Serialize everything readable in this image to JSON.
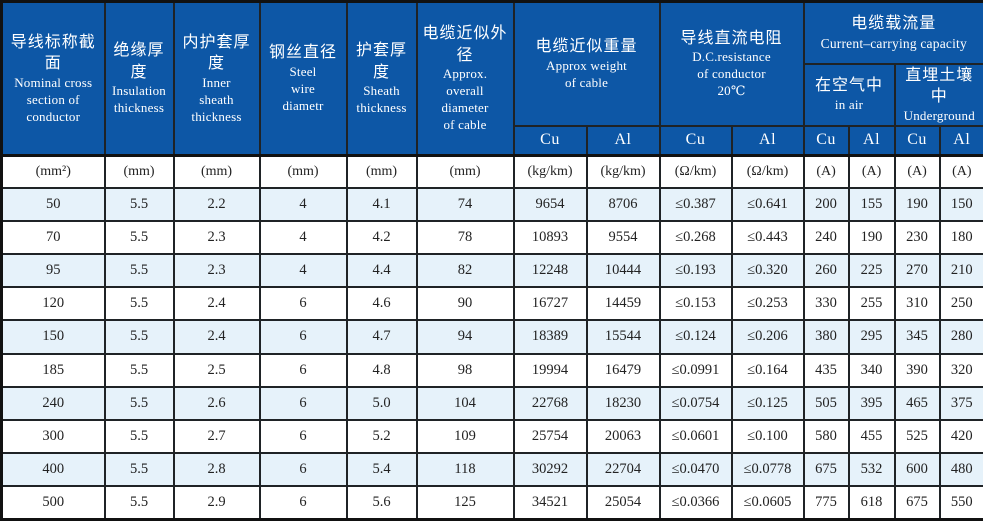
{
  "table_title": "cable-specification-table",
  "header": {
    "simple": [
      {
        "zh": "导线标称截面",
        "en": "Nominal  cross\nsection of\nconductor"
      },
      {
        "zh": "绝缘厚度",
        "en": "Insulation\nthickness"
      },
      {
        "zh": "内护套厚度",
        "en": "Inner\nsheath\nthickness"
      },
      {
        "zh": "钢丝直径",
        "en": "Steel\nwire\ndiametr"
      },
      {
        "zh": "护套厚度",
        "en": "Sheath\nthickness"
      },
      {
        "zh": "电缆近似外径",
        "en": "Approx.\noverall\ndiameter\nof cable"
      }
    ],
    "groups": {
      "weight": {
        "zh": "电缆近似重量",
        "en": "Approx weight\nof cable"
      },
      "resistance": {
        "zh": "导线直流电阻",
        "en": "D.C.resistance\nof conductor\n20℃"
      },
      "capacity": {
        "zh": "电缆载流量",
        "en": "Current–carrying capacity"
      }
    },
    "subgroups": {
      "in_air": {
        "zh": "在空气中",
        "en": "in air"
      },
      "underground": {
        "zh": "直埋土壤中",
        "en": "Underground"
      }
    },
    "materials": [
      "Cu",
      "Al",
      "Cu",
      "Al",
      "Cu",
      "Al",
      "Cu",
      "Al"
    ]
  },
  "units": [
    "(mm²)",
    "(mm)",
    "(mm)",
    "(mm)",
    "(mm)",
    "(mm)",
    "(kg/km)",
    "(kg/km)",
    "(Ω/km)",
    "(Ω/km)",
    "(A)",
    "(A)",
    "(A)",
    "(A)"
  ],
  "rows": [
    [
      "50",
      "5.5",
      "2.2",
      "4",
      "4.1",
      "74",
      "9654",
      "8706",
      "≤0.387",
      "≤0.641",
      "200",
      "155",
      "190",
      "150"
    ],
    [
      "70",
      "5.5",
      "2.3",
      "4",
      "4.2",
      "78",
      "10893",
      "9554",
      "≤0.268",
      "≤0.443",
      "240",
      "190",
      "230",
      "180"
    ],
    [
      "95",
      "5.5",
      "2.3",
      "4",
      "4.4",
      "82",
      "12248",
      "10444",
      "≤0.193",
      "≤0.320",
      "260",
      "225",
      "270",
      "210"
    ],
    [
      "120",
      "5.5",
      "2.4",
      "6",
      "4.6",
      "90",
      "16727",
      "14459",
      "≤0.153",
      "≤0.253",
      "330",
      "255",
      "310",
      "250"
    ],
    [
      "150",
      "5.5",
      "2.4",
      "6",
      "4.7",
      "94",
      "18389",
      "15544",
      "≤0.124",
      "≤0.206",
      "380",
      "295",
      "345",
      "280"
    ],
    [
      "185",
      "5.5",
      "2.5",
      "6",
      "4.8",
      "98",
      "19994",
      "16479",
      "≤0.0991",
      "≤0.164",
      "435",
      "340",
      "390",
      "320"
    ],
    [
      "240",
      "5.5",
      "2.6",
      "6",
      "5.0",
      "104",
      "22768",
      "18230",
      "≤0.0754",
      "≤0.125",
      "505",
      "395",
      "465",
      "375"
    ],
    [
      "300",
      "5.5",
      "2.7",
      "6",
      "5.2",
      "109",
      "25754",
      "20063",
      "≤0.0601",
      "≤0.100",
      "580",
      "455",
      "525",
      "420"
    ],
    [
      "400",
      "5.5",
      "2.8",
      "6",
      "5.4",
      "118",
      "30292",
      "22704",
      "≤0.0470",
      "≤0.0778",
      "675",
      "532",
      "600",
      "480"
    ],
    [
      "500",
      "5.5",
      "2.9",
      "6",
      "5.6",
      "125",
      "34521",
      "25054",
      "≤0.0366",
      "≤0.0605",
      "775",
      "618",
      "675",
      "550"
    ]
  ],
  "colors": {
    "header_bg": "#0d57a6",
    "header_text": "#ffffff",
    "stripe_row_bg": "#e6f2fa",
    "plain_row_bg": "#ffffff",
    "grid_line": "#1f2326",
    "body_text": "#222222"
  }
}
